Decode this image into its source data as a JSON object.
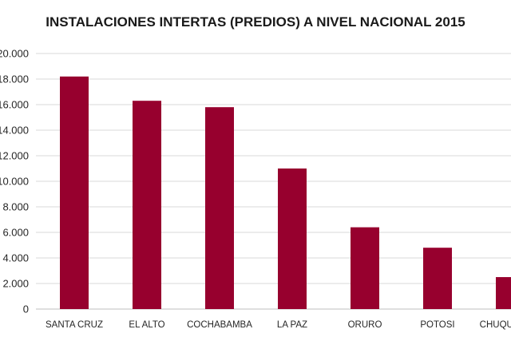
{
  "chart_data": {
    "type": "bar",
    "title": "INSTALACIONES INTERTAS (PREDIOS) A NIVEL NACIONAL 2015",
    "xlabel": "",
    "ylabel": "",
    "categories": [
      "SANTA CRUZ",
      "EL ALTO",
      "COCHABAMBA",
      "LA PAZ",
      "ORURO",
      "POTOSI",
      "CHUQUISACA"
    ],
    "values": [
      18200,
      16300,
      15800,
      11000,
      6400,
      4800,
      2500
    ],
    "ylim": [
      0,
      20000
    ],
    "y_ticks": [
      "0",
      "2.000",
      "4.000",
      "6.000",
      "8.000",
      "10.000",
      "12.000",
      "14.000",
      "16.000",
      "18.000",
      "20.000"
    ],
    "grid": true,
    "legend": "none",
    "bar_color": "#97002e"
  }
}
